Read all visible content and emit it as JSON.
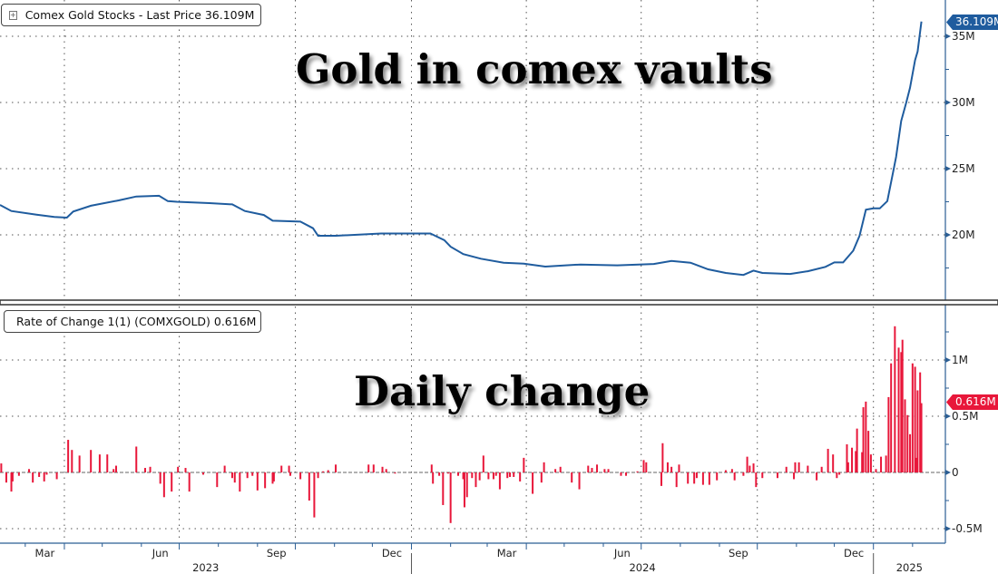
{
  "chart_data": [
    {
      "type": "line",
      "panel": "top",
      "legend": {
        "label": "Comex Gold Stocks - Last Price 36.109M",
        "placement": "top-left",
        "icon": "expand-icon"
      },
      "annotation": "Gold in comex vaults",
      "last_value_tag": "36.109M",
      "color": "#1f5c9e",
      "y_ticks": [
        {
          "v": 20,
          "label": "20M"
        },
        {
          "v": 25,
          "label": "25M"
        },
        {
          "v": 30,
          "label": "30M"
        },
        {
          "v": 35,
          "label": "35M"
        }
      ],
      "ylim": [
        15,
        37.5
      ],
      "grid": true,
      "series": [
        {
          "points": [
            [
              "2023-02-09",
              22.26
            ],
            [
              "2023-02-18",
              21.8
            ],
            [
              "2023-03-10",
              21.53
            ],
            [
              "2023-03-24",
              21.35
            ],
            [
              "2023-04-03",
              21.3
            ],
            [
              "2023-04-08",
              21.76
            ],
            [
              "2023-04-22",
              22.2
            ],
            [
              "2023-05-14",
              22.6
            ],
            [
              "2023-05-28",
              22.9
            ],
            [
              "2023-06-15",
              22.95
            ],
            [
              "2023-06-22",
              22.55
            ],
            [
              "2023-06-29",
              22.5
            ],
            [
              "2023-07-25",
              22.4
            ],
            [
              "2023-08-12",
              22.3
            ],
            [
              "2023-08-22",
              21.8
            ],
            [
              "2023-09-06",
              21.5
            ],
            [
              "2023-09-13",
              21.07
            ],
            [
              "2023-10-05",
              21.0
            ],
            [
              "2023-10-15",
              20.5
            ],
            [
              "2023-10-19",
              19.93
            ],
            [
              "2023-11-02",
              19.93
            ],
            [
              "2023-12-08",
              20.1
            ],
            [
              "2024-01-16",
              20.1
            ],
            [
              "2024-01-27",
              19.6
            ],
            [
              "2024-02-01",
              19.1
            ],
            [
              "2024-02-11",
              18.55
            ],
            [
              "2024-02-25",
              18.2
            ],
            [
              "2024-03-14",
              17.9
            ],
            [
              "2024-03-30",
              17.83
            ],
            [
              "2024-04-16",
              17.6
            ],
            [
              "2024-05-14",
              17.76
            ],
            [
              "2024-06-12",
              17.7
            ],
            [
              "2024-07-11",
              17.8
            ],
            [
              "2024-07-25",
              18.03
            ],
            [
              "2024-08-09",
              17.9
            ],
            [
              "2024-08-23",
              17.4
            ],
            [
              "2024-09-06",
              17.12
            ],
            [
              "2024-09-20",
              16.97
            ],
            [
              "2024-09-28",
              17.3
            ],
            [
              "2024-10-05",
              17.12
            ],
            [
              "2024-10-27",
              17.05
            ],
            [
              "2024-11-10",
              17.25
            ],
            [
              "2024-11-24",
              17.58
            ],
            [
              "2024-12-01",
              17.92
            ],
            [
              "2024-12-08",
              17.92
            ],
            [
              "2024-12-16",
              18.8
            ],
            [
              "2024-12-21",
              19.93
            ],
            [
              "2024-12-26",
              21.9
            ],
            [
              "2025-01-01",
              22.0
            ],
            [
              "2025-01-06",
              22.0
            ],
            [
              "2025-01-12",
              22.55
            ],
            [
              "2025-01-17",
              24.95
            ],
            [
              "2025-01-19",
              25.9
            ],
            [
              "2025-01-23",
              28.6
            ],
            [
              "2025-01-27",
              30.0
            ],
            [
              "2025-01-30",
              31.1
            ],
            [
              "2025-02-03",
              33.2
            ],
            [
              "2025-02-05",
              33.85
            ],
            [
              "2025-02-08",
              36.109
            ]
          ]
        }
      ]
    },
    {
      "type": "bar",
      "panel": "bottom",
      "legend": {
        "label": "Rate of Change 1(1) (COMXGOLD) 0.616M",
        "placement": "top-left"
      },
      "annotation": "Daily change",
      "last_value_tag": "0.616M",
      "color": "#e8173a",
      "y_ticks": [
        {
          "v": -0.5,
          "label": "-0.5M"
        },
        {
          "v": 0,
          "label": "0"
        },
        {
          "v": 0.5,
          "label": "0.5M"
        },
        {
          "v": 1,
          "label": "1M"
        }
      ],
      "ylim": [
        -0.62,
        1.5
      ],
      "grid": true,
      "series": [
        {
          "points": [
            [
              "2023-02-10",
              0.08
            ],
            [
              "2023-02-14",
              -0.09
            ],
            [
              "2023-02-18",
              -0.17
            ],
            [
              "2023-02-19",
              -0.08
            ],
            [
              "2023-02-24",
              -0.03
            ],
            [
              "2023-03-04",
              0.03
            ],
            [
              "2023-03-07",
              -0.09
            ],
            [
              "2023-03-12",
              -0.04
            ],
            [
              "2023-03-16",
              -0.08
            ],
            [
              "2023-03-18",
              -0.02
            ],
            [
              "2023-03-26",
              -0.06
            ],
            [
              "2023-04-04",
              0.29
            ],
            [
              "2023-04-07",
              0.2
            ],
            [
              "2023-04-13",
              0.15
            ],
            [
              "2023-04-22",
              0.2
            ],
            [
              "2023-04-29",
              0.16
            ],
            [
              "2023-05-05",
              0.16
            ],
            [
              "2023-05-10",
              0.03
            ],
            [
              "2023-05-12",
              0.06
            ],
            [
              "2023-05-28",
              0.23
            ],
            [
              "2023-06-04",
              0.04
            ],
            [
              "2023-06-08",
              0.05
            ],
            [
              "2023-06-16",
              -0.1
            ],
            [
              "2023-06-19",
              -0.22
            ],
            [
              "2023-06-25",
              -0.17
            ],
            [
              "2023-06-30",
              0.05
            ],
            [
              "2023-07-06",
              0.04
            ],
            [
              "2023-07-09",
              -0.17
            ],
            [
              "2023-07-20",
              -0.02
            ],
            [
              "2023-07-31",
              -0.13
            ],
            [
              "2023-08-06",
              0.06
            ],
            [
              "2023-08-12",
              -0.05
            ],
            [
              "2023-08-14",
              -0.09
            ],
            [
              "2023-08-18",
              -0.17
            ],
            [
              "2023-08-24",
              -0.05
            ],
            [
              "2023-08-28",
              -0.03
            ],
            [
              "2023-09-01",
              -0.16
            ],
            [
              "2023-09-07",
              -0.14
            ],
            [
              "2023-09-13",
              -0.1
            ],
            [
              "2023-09-14",
              -0.08
            ],
            [
              "2023-09-20",
              0.06
            ],
            [
              "2023-09-26",
              0.06
            ],
            [
              "2023-09-27",
              -0.03
            ],
            [
              "2023-10-05",
              -0.06
            ],
            [
              "2023-10-12",
              -0.25
            ],
            [
              "2023-10-16",
              -0.4
            ],
            [
              "2023-10-19",
              -0.05
            ],
            [
              "2023-10-23",
              0.01
            ],
            [
              "2023-10-27",
              0.02
            ],
            [
              "2023-11-02",
              0.07
            ],
            [
              "2023-11-28",
              0.07
            ],
            [
              "2023-12-02",
              0.07
            ],
            [
              "2023-12-09",
              0.05
            ],
            [
              "2023-12-12",
              0.03
            ],
            [
              "2023-12-19",
              -0.01
            ],
            [
              "2024-01-17",
              0.07
            ],
            [
              "2024-01-18",
              -0.1
            ],
            [
              "2024-01-23",
              -0.03
            ],
            [
              "2024-01-26",
              -0.29
            ],
            [
              "2024-01-30",
              -0.01
            ],
            [
              "2024-02-01",
              -0.45
            ],
            [
              "2024-02-07",
              -0.03
            ],
            [
              "2024-02-11",
              -0.06
            ],
            [
              "2024-02-12",
              -0.31
            ],
            [
              "2024-02-14",
              -0.22
            ],
            [
              "2024-02-18",
              -0.05
            ],
            [
              "2024-02-21",
              -0.13
            ],
            [
              "2024-02-24",
              -0.07
            ],
            [
              "2024-02-27",
              0.15
            ],
            [
              "2024-03-02",
              -0.06
            ],
            [
              "2024-03-06",
              -0.06
            ],
            [
              "2024-03-08",
              -0.03
            ],
            [
              "2024-03-11",
              -0.15
            ],
            [
              "2024-03-17",
              -0.05
            ],
            [
              "2024-03-19",
              -0.04
            ],
            [
              "2024-03-22",
              -0.04
            ],
            [
              "2024-03-27",
              -0.08
            ],
            [
              "2024-03-30",
              0.13
            ],
            [
              "2024-04-06",
              -0.19
            ],
            [
              "2024-04-13",
              -0.09
            ],
            [
              "2024-04-15",
              0.09
            ],
            [
              "2024-04-24",
              0.03
            ],
            [
              "2024-04-28",
              0.05
            ],
            [
              "2024-05-07",
              -0.09
            ],
            [
              "2024-05-13",
              -0.15
            ],
            [
              "2024-05-20",
              0.06
            ],
            [
              "2024-05-23",
              0.04
            ],
            [
              "2024-05-27",
              0.07
            ],
            [
              "2024-06-02",
              0.03
            ],
            [
              "2024-06-05",
              0.03
            ],
            [
              "2024-06-15",
              -0.03
            ],
            [
              "2024-06-19",
              -0.03
            ],
            [
              "2024-06-28",
              0.01
            ],
            [
              "2024-07-03",
              0.11
            ],
            [
              "2024-07-05",
              0.09
            ],
            [
              "2024-07-17",
              -0.12
            ],
            [
              "2024-07-18",
              0.26
            ],
            [
              "2024-07-22",
              0.09
            ],
            [
              "2024-07-25",
              0.05
            ],
            [
              "2024-07-29",
              -0.13
            ],
            [
              "2024-07-31",
              0.07
            ],
            [
              "2024-08-07",
              -0.1
            ],
            [
              "2024-08-12",
              -0.1
            ],
            [
              "2024-08-14",
              -0.05
            ],
            [
              "2024-08-19",
              -0.11
            ],
            [
              "2024-08-24",
              -0.11
            ],
            [
              "2024-08-30",
              -0.07
            ],
            [
              "2024-09-06",
              0.02
            ],
            [
              "2024-09-11",
              0.03
            ],
            [
              "2024-09-13",
              -0.07
            ],
            [
              "2024-09-20",
              -0.03
            ],
            [
              "2024-09-23",
              0.14
            ],
            [
              "2024-09-25",
              0.06
            ],
            [
              "2024-09-28",
              0.08
            ],
            [
              "2024-09-30",
              -0.13
            ],
            [
              "2024-10-05",
              -0.05
            ],
            [
              "2024-10-17",
              -0.05
            ],
            [
              "2024-10-24",
              0.05
            ],
            [
              "2024-10-30",
              -0.06
            ],
            [
              "2024-10-31",
              0.09
            ],
            [
              "2024-11-03",
              0.09
            ],
            [
              "2024-11-10",
              0.06
            ],
            [
              "2024-11-17",
              -0.07
            ],
            [
              "2024-11-21",
              0.05
            ],
            [
              "2024-11-26",
              0.21
            ],
            [
              "2024-11-30",
              0.16
            ],
            [
              "2024-12-03",
              -0.05
            ],
            [
              "2024-12-05",
              -0.02
            ],
            [
              "2024-12-11",
              0.25
            ],
            [
              "2024-12-12",
              0.09
            ],
            [
              "2024-12-15",
              0.22
            ],
            [
              "2024-12-18",
              0.19
            ],
            [
              "2024-12-19",
              0.39
            ],
            [
              "2024-12-23",
              0.18
            ],
            [
              "2024-12-24",
              0.58
            ],
            [
              "2024-12-26",
              0.63
            ],
            [
              "2024-12-28",
              0.37
            ],
            [
              "2024-12-30",
              0.16
            ],
            [
              "2025-01-03",
              0.03
            ],
            [
              "2025-01-07",
              0.14
            ],
            [
              "2025-01-11",
              0.15
            ],
            [
              "2025-01-13",
              0.67
            ],
            [
              "2025-01-15",
              0.97
            ],
            [
              "2025-01-18",
              1.3
            ],
            [
              "2025-01-21",
              1.11
            ],
            [
              "2025-01-23",
              1.07
            ],
            [
              "2025-01-24",
              1.18
            ],
            [
              "2025-01-26",
              0.65
            ],
            [
              "2025-01-28",
              0.51
            ],
            [
              "2025-01-30",
              0.34
            ],
            [
              "2025-02-01",
              0.97
            ],
            [
              "2025-02-03",
              0.94
            ],
            [
              "2025-02-04",
              0.13
            ],
            [
              "2025-02-05",
              0.73
            ],
            [
              "2025-02-07",
              0.89
            ],
            [
              "2025-02-08",
              0.616
            ]
          ]
        }
      ]
    }
  ],
  "x_axis": {
    "xlim": [
      "2023-02-09",
      "2025-02-27"
    ],
    "month_labels": [
      {
        "month": "2023-03",
        "label": "Mar"
      },
      {
        "month": "2023-06",
        "label": "Jun"
      },
      {
        "month": "2023-09",
        "label": "Sep"
      },
      {
        "month": "2023-12",
        "label": "Dec"
      },
      {
        "month": "2024-03",
        "label": "Mar"
      },
      {
        "month": "2024-06",
        "label": "Jun"
      },
      {
        "month": "2024-09",
        "label": "Sep"
      },
      {
        "month": "2024-12",
        "label": "Dec"
      }
    ],
    "years": [
      {
        "label": "2023"
      },
      {
        "label": "2024"
      },
      {
        "label": "2025"
      }
    ]
  }
}
